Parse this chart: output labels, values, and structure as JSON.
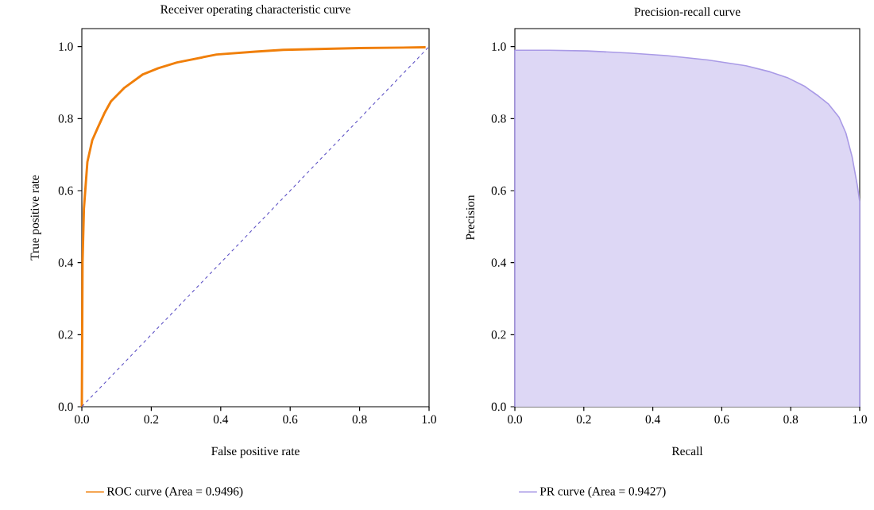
{
  "chart_data": [
    {
      "type": "line",
      "title": "Receiver operating characteristic curve",
      "xlabel": "False positive rate",
      "ylabel": "True positive rate",
      "xlim": [
        0,
        1
      ],
      "ylim": [
        0,
        1.05
      ],
      "xticks": [
        {
          "value": 0,
          "label": "0.0"
        },
        {
          "value": 0.2,
          "label": "0.2"
        },
        {
          "value": 0.4,
          "label": "0.4"
        },
        {
          "value": 0.6,
          "label": "0.6"
        },
        {
          "value": 0.8,
          "label": "0.8"
        },
        {
          "value": 1,
          "label": "1.0"
        }
      ],
      "yticks": [
        {
          "value": 0,
          "label": "0.0"
        },
        {
          "value": 0.2,
          "label": "0.2"
        },
        {
          "value": 0.4,
          "label": "0.4"
        },
        {
          "value": 0.6,
          "label": "0.6"
        },
        {
          "value": 0.8,
          "label": "0.8"
        },
        {
          "value": 1,
          "label": "1.0"
        }
      ],
      "legend": "bottom",
      "series": [
        {
          "name": "ROC curve (Area = 0.9496)",
          "color": "#f07f0a",
          "x": [
            0,
            0.002,
            0.006,
            0.016,
            0.03,
            0.046,
            0.065,
            0.084,
            0.123,
            0.176,
            0.22,
            0.274,
            0.388,
            0.5,
            0.58,
            0.8,
            0.99
          ],
          "values": [
            0,
            0.4,
            0.55,
            0.68,
            0.74,
            0.775,
            0.815,
            0.848,
            0.886,
            0.923,
            0.94,
            0.956,
            0.978,
            0.986,
            0.991,
            0.996,
            0.998
          ]
        },
        {
          "type": "line",
          "color": "#5b4fc4",
          "line_style": "dashed",
          "x": [
            0,
            1
          ],
          "values": [
            0,
            1
          ]
        }
      ]
    },
    {
      "type": "area",
      "title": "Precision-recall curve",
      "xlabel": "Recall",
      "ylabel": "Precision",
      "xlim": [
        0,
        1
      ],
      "ylim": [
        0,
        1.05
      ],
      "xticks": [
        {
          "value": 0,
          "label": "0.0"
        },
        {
          "value": 0.2,
          "label": "0.2"
        },
        {
          "value": 0.4,
          "label": "0.4"
        },
        {
          "value": 0.6,
          "label": "0.6"
        },
        {
          "value": 0.8,
          "label": "0.8"
        },
        {
          "value": 1,
          "label": "1.0"
        }
      ],
      "yticks": [
        {
          "value": 0,
          "label": "0.0"
        },
        {
          "value": 0.2,
          "label": "0.2"
        },
        {
          "value": 0.4,
          "label": "0.4"
        },
        {
          "value": 0.6,
          "label": "0.6"
        },
        {
          "value": 0.8,
          "label": "0.8"
        },
        {
          "value": 1,
          "label": "1.0"
        }
      ],
      "legend": "bottom",
      "series": [
        {
          "name": "PR curve (Area = 0.9427)",
          "color": "#a99ae6",
          "x": [
            0,
            0.1,
            0.21,
            0.33,
            0.44,
            0.56,
            0.67,
            0.74,
            0.79,
            0.84,
            0.88,
            0.91,
            0.94,
            0.96,
            0.978,
            0.993,
            1.0
          ],
          "values": [
            0.99,
            0.99,
            0.988,
            0.982,
            0.975,
            0.963,
            0.947,
            0.93,
            0.914,
            0.89,
            0.863,
            0.84,
            0.804,
            0.76,
            0.694,
            0.615,
            0.57
          ]
        }
      ]
    }
  ]
}
